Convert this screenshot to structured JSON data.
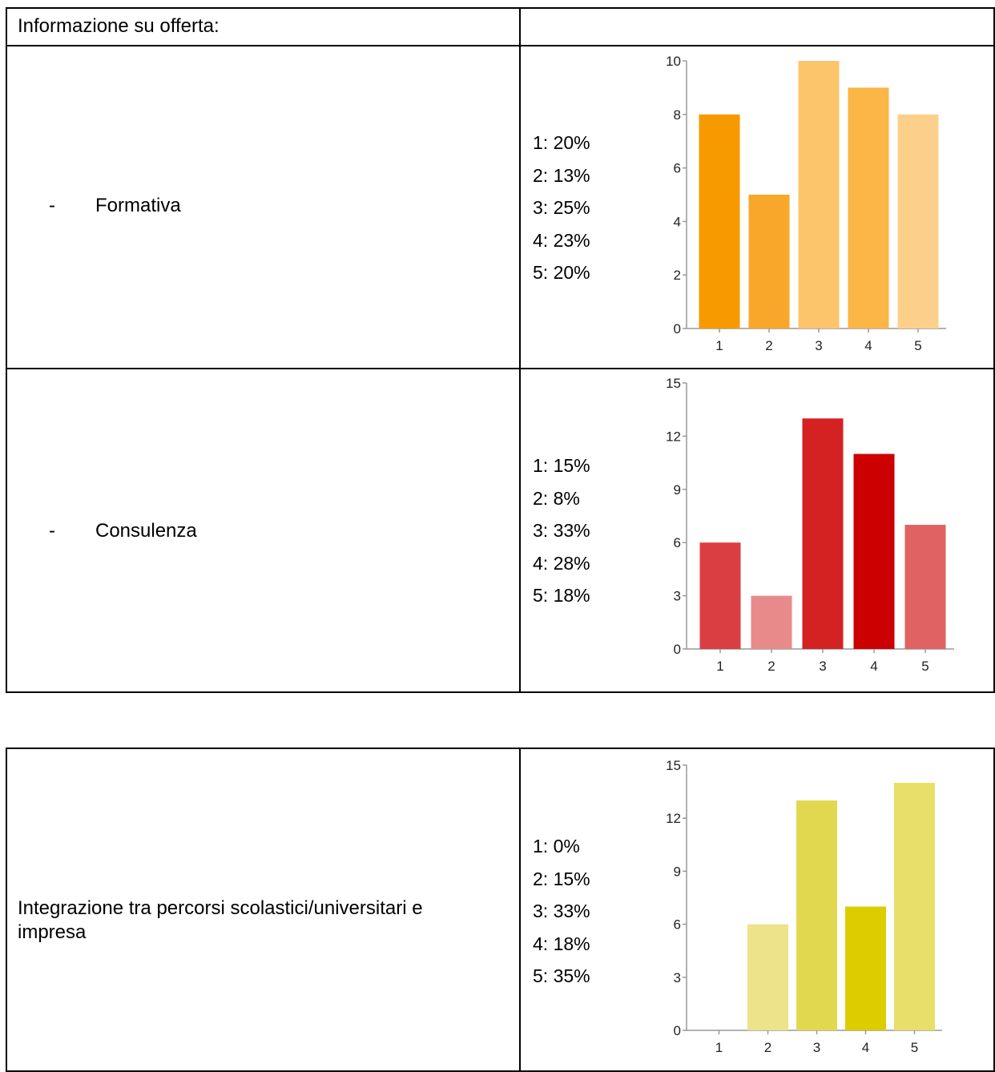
{
  "table1": {
    "header": "Informazione su offerta:",
    "rows": [
      {
        "dash": "-",
        "label": "Formativa",
        "percentages": [
          "1: 20%",
          "2: 13%",
          "3: 25%",
          "4: 23%",
          "5: 20%"
        ]
      },
      {
        "dash": "-",
        "label": "Consulenza",
        "percentages": [
          "1: 15%",
          "2: 8%",
          "3: 33%",
          "4: 28%",
          "5: 18%"
        ]
      }
    ]
  },
  "table2": {
    "label_line1": "Integrazione tra percorsi scolastici/universitari e",
    "label_line2": "impresa",
    "percentages": [
      "1: 0%",
      "2: 15%",
      "3: 33%",
      "4: 18%",
      "5: 35%"
    ]
  },
  "chart_data": [
    {
      "type": "bar",
      "categories": [
        "1",
        "2",
        "3",
        "4",
        "5"
      ],
      "values": [
        8,
        5,
        10,
        9,
        8
      ],
      "ylim": [
        0,
        10
      ],
      "yticks": [
        0,
        2,
        4,
        6,
        8,
        10
      ],
      "colors": [
        "#f79a00",
        "#f9a72a",
        "#fcc46b",
        "#fbb646",
        "#fcd08a"
      ],
      "grid": false
    },
    {
      "type": "bar",
      "categories": [
        "1",
        "2",
        "3",
        "4",
        "5"
      ],
      "values": [
        6,
        3,
        13,
        11,
        7
      ],
      "ylim": [
        0,
        15
      ],
      "yticks": [
        0,
        3,
        6,
        9,
        12,
        15
      ],
      "colors": [
        "#db3e42",
        "#e98a8a",
        "#d42222",
        "#cc0000",
        "#e06262"
      ],
      "grid": false
    },
    {
      "type": "bar",
      "categories": [
        "1",
        "2",
        "3",
        "4",
        "5"
      ],
      "values": [
        0,
        6,
        13,
        7,
        14
      ],
      "ylim": [
        0,
        15
      ],
      "yticks": [
        0,
        3,
        6,
        9,
        12,
        15
      ],
      "colors": [
        "#e8df6a",
        "#ece38a",
        "#e2d850",
        "#ddcc00",
        "#e8df6a"
      ],
      "grid": false
    }
  ]
}
